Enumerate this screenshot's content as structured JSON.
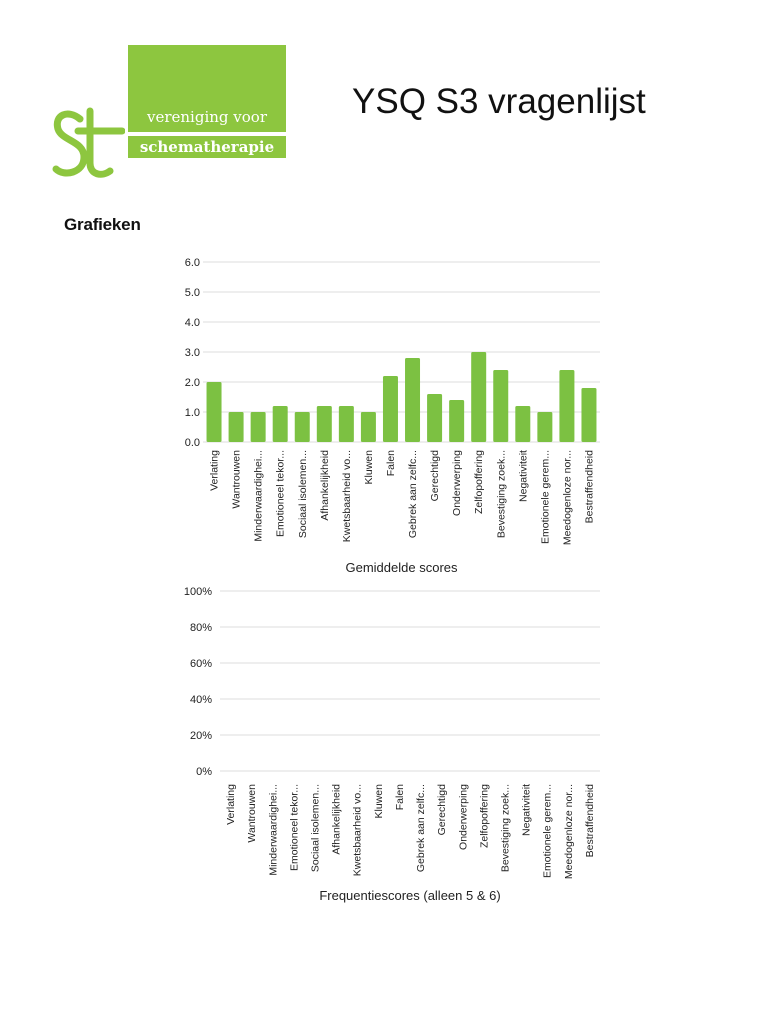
{
  "logo": {
    "line1": "vereniging voor",
    "line2": "schematherapie",
    "mark_icon": "st-monogram-icon",
    "brand_color": "#8dc63f"
  },
  "title": "YSQ S3 vragenlijst",
  "section_heading": "Grafieken",
  "chart_data": [
    {
      "type": "bar",
      "title": "Gemiddelde scores",
      "categories": [
        "Verlating",
        "Wantrouwen",
        "Minderwaardighei...",
        "Emotioneel tekor...",
        "Sociaal isolemen...",
        "Afhankelijkheid",
        "Kwetsbaarheid vo...",
        "Kluwen",
        "Falen",
        "Gebrek aan zelfc...",
        "Gerechtigd",
        "Onderwerping",
        "Zelfopoffering",
        "Bevestiging zoek...",
        "Negativiteit",
        "Emotionele gerem...",
        "Meedogenloze nor...",
        "Bestraffendheid"
      ],
      "values": [
        2.0,
        1.0,
        1.0,
        1.2,
        1.0,
        1.2,
        1.2,
        1.0,
        2.2,
        2.8,
        1.6,
        1.4,
        3.0,
        2.4,
        1.2,
        1.0,
        2.4,
        1.8
      ],
      "yticks": [
        "0.0",
        "1.0",
        "2.0",
        "3.0",
        "4.0",
        "5.0",
        "6.0"
      ],
      "ylim": [
        0,
        6
      ],
      "grid": true,
      "bar_color": "#7cc142"
    },
    {
      "type": "bar",
      "title": "Frequentiescores (alleen 5 & 6)",
      "categories": [
        "Verlating",
        "Wantrouwen",
        "Minderwaardighei...",
        "Emotioneel tekor...",
        "Sociaal isolemen...",
        "Afhankelijkheid",
        "Kwetsbaarheid vo...",
        "Kluwen",
        "Falen",
        "Gebrek aan zelfc...",
        "Gerechtigd",
        "Onderwerping",
        "Zelfopoffering",
        "Bevestiging zoek...",
        "Negativiteit",
        "Emotionele gerem...",
        "Meedogenloze nor...",
        "Bestraffendheid"
      ],
      "values": [
        0,
        0,
        0,
        0,
        0,
        0,
        0,
        0,
        0,
        0,
        0,
        0,
        0,
        0,
        0,
        0,
        0,
        0
      ],
      "yticks": [
        "0%",
        "20%",
        "40%",
        "60%",
        "80%",
        "100%"
      ],
      "ylim": [
        0,
        100
      ],
      "grid": true,
      "bar_color": "#7cc142"
    }
  ]
}
